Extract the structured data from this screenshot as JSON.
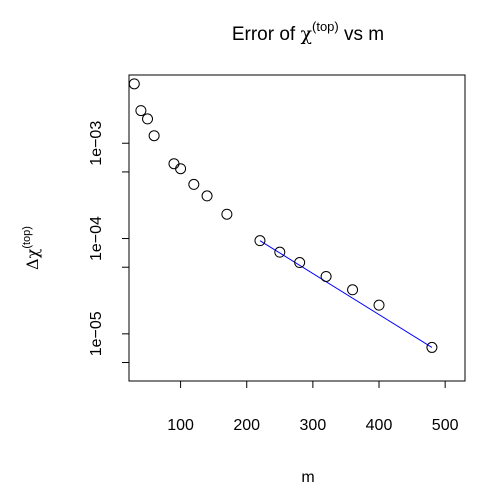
{
  "chart_data": {
    "type": "scatter",
    "title": {
      "prefix": "Error of ",
      "symbol": "χ",
      "superscript": "(top)",
      "suffix": " vs m"
    },
    "xlabel": "m",
    "ylabel": {
      "delta": "Δ",
      "symbol": "χ",
      "superscript": "(top)"
    },
    "x_scale": "linear",
    "y_scale": "log",
    "xlim": [
      22,
      530
    ],
    "ylim": [
      3.2e-06,
      0.0052
    ],
    "x_ticks": [
      100,
      200,
      300,
      400,
      500
    ],
    "x_tick_labels": [
      "100",
      "200",
      "300",
      "400",
      "500"
    ],
    "y_ticks": [
      1e-05,
      0.0001,
      0.001
    ],
    "y_tick_labels": [
      "1e−05",
      "1e−04",
      "1e−03"
    ],
    "y_minor_ticks": [
      5e-06,
      5e-05,
      0.0005
    ],
    "grid": false,
    "legend": "none",
    "series": [
      {
        "points": [
          {
            "x": 30,
            "y": 0.0042
          },
          {
            "x": 40,
            "y": 0.0022
          },
          {
            "x": 50,
            "y": 0.0018
          },
          {
            "x": 60,
            "y": 0.0012
          },
          {
            "x": 90,
            "y": 0.00061
          },
          {
            "x": 100,
            "y": 0.00054
          },
          {
            "x": 120,
            "y": 0.00037
          },
          {
            "x": 140,
            "y": 0.00028
          },
          {
            "x": 170,
            "y": 0.00018
          },
          {
            "x": 220,
            "y": 9.5e-05
          },
          {
            "x": 250,
            "y": 7.2e-05
          },
          {
            "x": 280,
            "y": 5.6e-05
          },
          {
            "x": 320,
            "y": 4e-05
          },
          {
            "x": 360,
            "y": 2.9e-05
          },
          {
            "x": 400,
            "y": 2e-05
          },
          {
            "x": 480,
            "y": 7.2e-06
          }
        ]
      }
    ],
    "fit_line": {
      "from": {
        "x": 220,
        "y": 9.5e-05
      },
      "to": {
        "x": 480,
        "y": 7.2e-06
      },
      "color": "#0000ff"
    },
    "colors": {
      "points": "#000000",
      "axes": "#000000",
      "fit": "#0000ff"
    }
  }
}
